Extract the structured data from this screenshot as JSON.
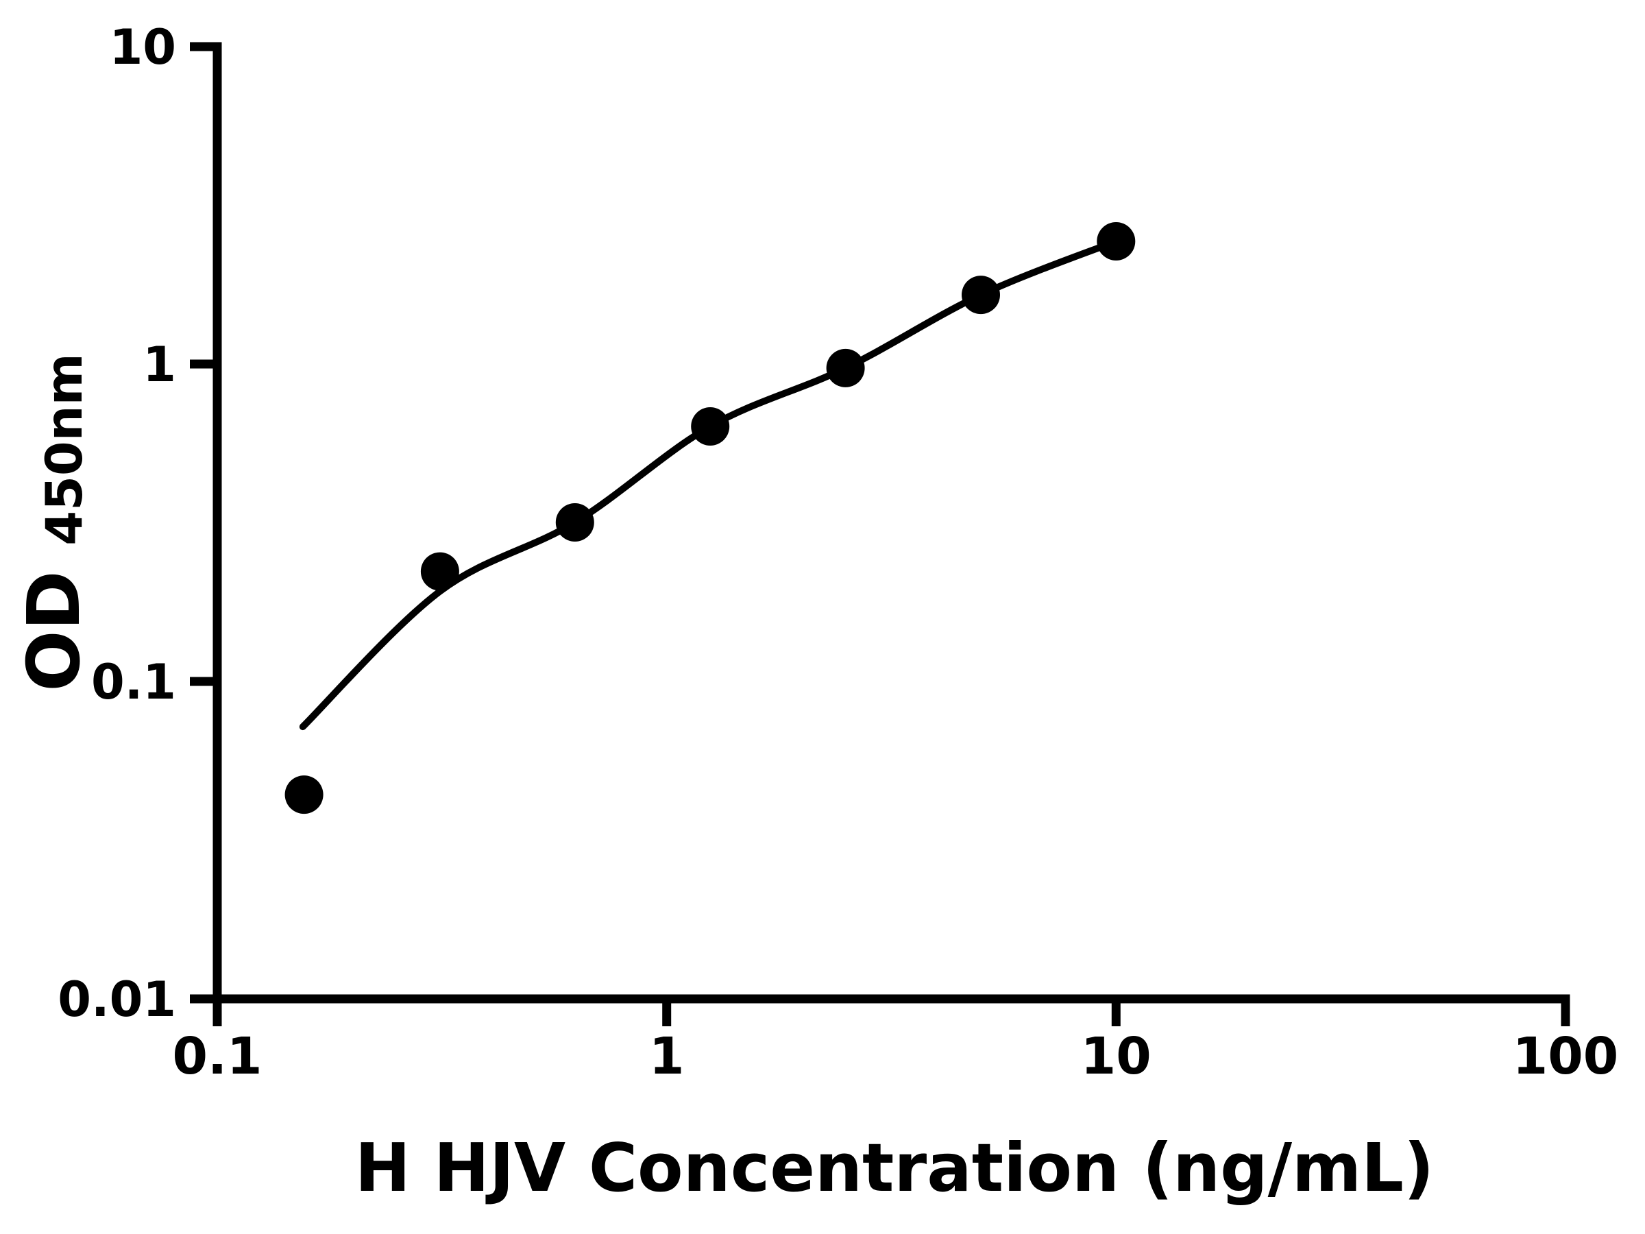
{
  "figure": {
    "background_color": "#ffffff",
    "ink_color": "#000000"
  },
  "chart_data": {
    "type": "scatter",
    "subtype": "ELISA standard curve with fitted line",
    "title": "",
    "xlabel": "H HJV Concentration (ng/mL)",
    "ylabel_main": "OD",
    "ylabel_subscript": "450nm",
    "xscale": "log",
    "yscale": "log",
    "xlim": [
      0.1,
      100
    ],
    "ylim": [
      0.01,
      10
    ],
    "grid": false,
    "legend": "none",
    "x_ticks": [
      {
        "value": 0.1,
        "label": "0.1"
      },
      {
        "value": 1,
        "label": "1"
      },
      {
        "value": 10,
        "label": "10"
      },
      {
        "value": 100,
        "label": "100"
      }
    ],
    "y_ticks": [
      {
        "value": 10,
        "label": "10"
      },
      {
        "value": 1,
        "label": "1"
      },
      {
        "value": 0.1,
        "label": "0.1"
      },
      {
        "value": 0.01,
        "label": "0.01"
      }
    ],
    "series": [
      {
        "name": "standard-data-points",
        "type": "scatter",
        "marker": "filled-circle",
        "color": "#000000",
        "points": [
          {
            "x": 0.156,
            "y": 0.044
          },
          {
            "x": 0.313,
            "y": 0.222
          },
          {
            "x": 0.625,
            "y": 0.317
          },
          {
            "x": 1.25,
            "y": 0.636
          },
          {
            "x": 2.5,
            "y": 0.971
          },
          {
            "x": 5,
            "y": 1.652
          },
          {
            "x": 10,
            "y": 2.436
          }
        ]
      },
      {
        "name": "fitted-curve",
        "type": "line",
        "color": "#000000",
        "points": [
          {
            "x": 0.155,
            "y": 0.072
          },
          {
            "x": 0.3125,
            "y": 0.192
          },
          {
            "x": 0.625,
            "y": 0.317
          },
          {
            "x": 1.25,
            "y": 0.636
          },
          {
            "x": 2.5,
            "y": 0.971
          },
          {
            "x": 5,
            "y": 1.652
          },
          {
            "x": 10,
            "y": 2.436
          }
        ]
      }
    ]
  }
}
